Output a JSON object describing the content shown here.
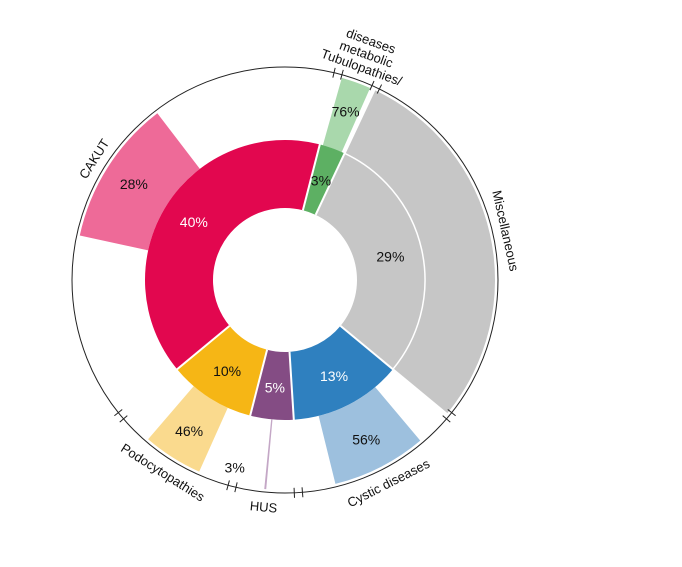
{
  "chart_data": {
    "type": "sunburst",
    "title": "",
    "categories": [
      {
        "name": "CAKUT",
        "share": 40,
        "outer": 28,
        "inner_color": "#E2074F",
        "outer_color": "#EE6A98",
        "inner_text_color": "#ffffff"
      },
      {
        "name": "Tubulopathies/ metabolic diseases",
        "name_lines": [
          "Tubulopathies/",
          "metabolic",
          "diseases"
        ],
        "share": 3,
        "outer": 76,
        "inner_color": "#5DB063",
        "outer_color": "#A9D8AC",
        "inner_text_color": "#111111"
      },
      {
        "name": "Miscellaneous",
        "share": 29,
        "outer": 100,
        "inner_color": "#C6C6C6",
        "outer_color": "#C6C6C6",
        "inner_text_color": "#111111"
      },
      {
        "name": "Cystic diseases",
        "share": 13,
        "outer": 56,
        "inner_color": "#2F80BF",
        "outer_color": "#9DC0DE",
        "inner_text_color": "#ffffff"
      },
      {
        "name": "HUS",
        "share": 5,
        "outer": 3,
        "inner_color": "#844C84",
        "outer_color": "#C4A7C6",
        "inner_text_color": "#ffffff"
      },
      {
        "name": "Podocytopathies",
        "share": 10,
        "outer": 46,
        "inner_color": "#F6B615",
        "outer_color": "#FADA8E",
        "inner_text_color": "#111111"
      }
    ],
    "inner_labels": [
      "40%",
      "3%",
      "29%",
      "13%",
      "5%",
      "10%"
    ],
    "outer_labels": [
      "28%",
      "76%",
      "",
      "56%",
      "3%",
      "46%"
    ]
  }
}
